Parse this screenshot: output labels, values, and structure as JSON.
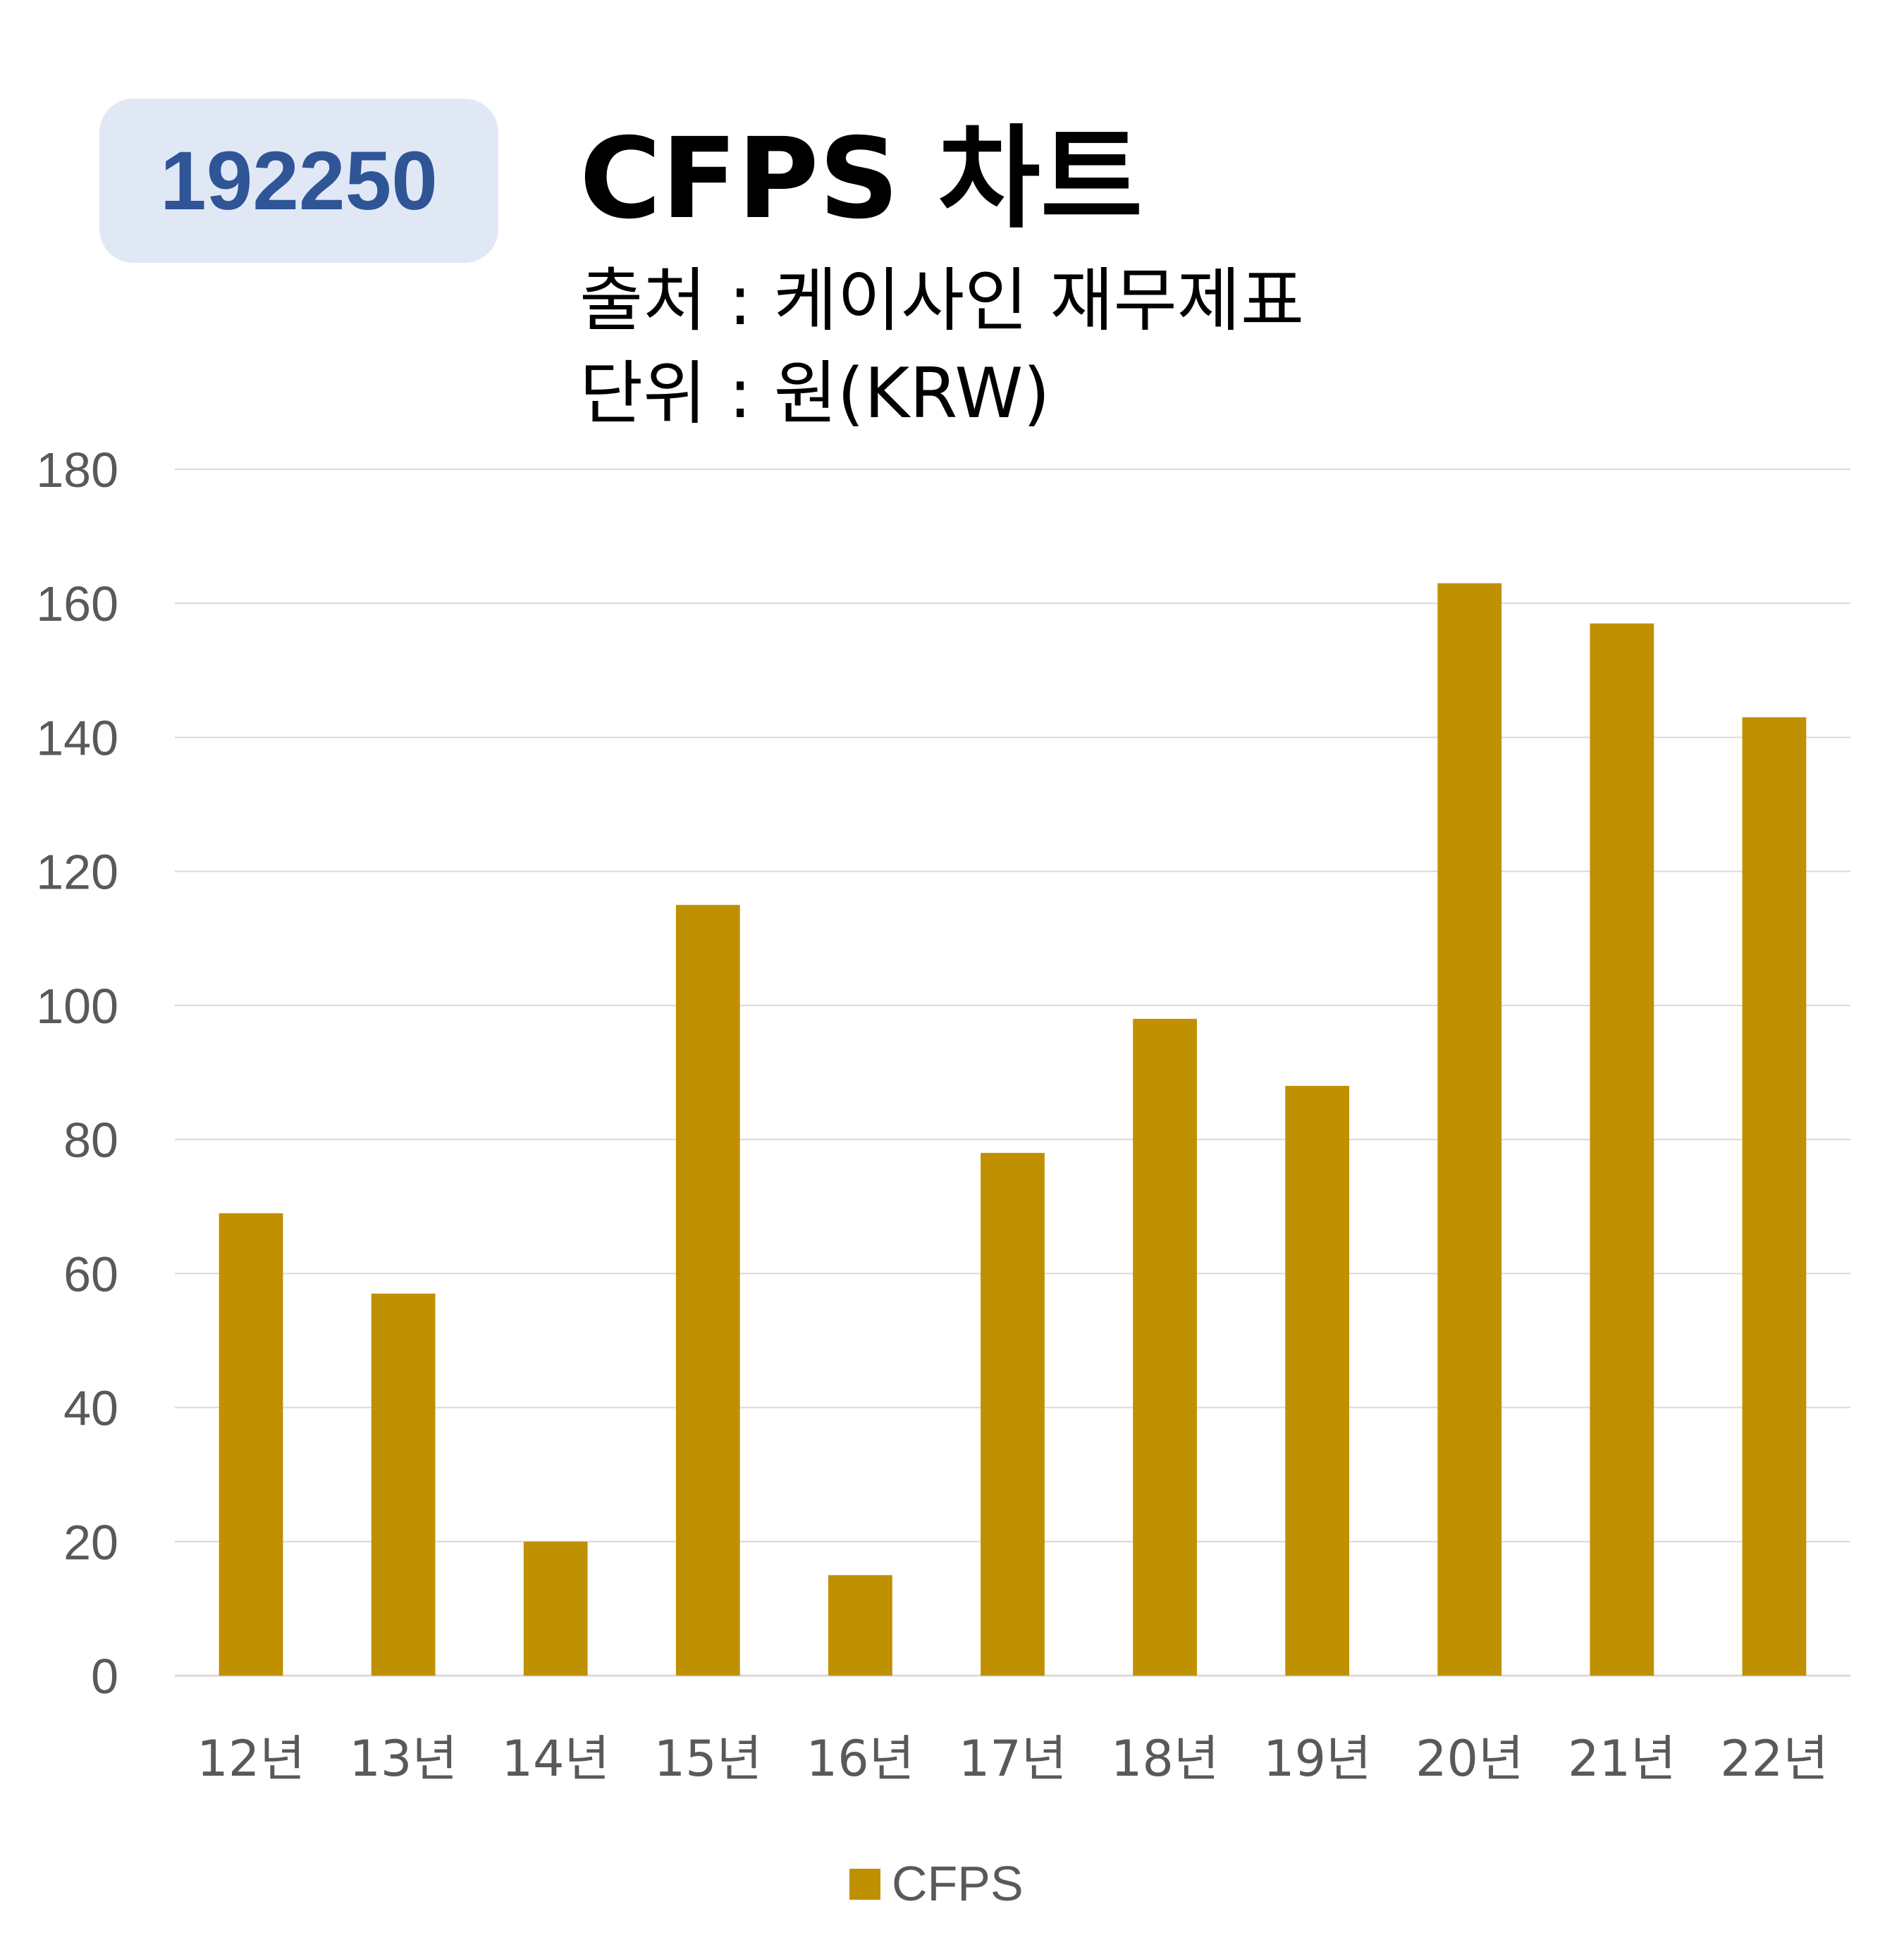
{
  "badge": {
    "code": "192250"
  },
  "header": {
    "title": "CFPS 차트",
    "source": "출처 : 케이사인 재무제표",
    "unit": "단위 : 원(KRW)"
  },
  "colors": {
    "bar": "#bf9000",
    "badge_bg": "#e1e8f5",
    "badge_text": "#2f5597",
    "grid": "#d9d9d9"
  },
  "chart_data": {
    "type": "bar",
    "categories": [
      "12년",
      "13년",
      "14년",
      "15년",
      "16년",
      "17년",
      "18년",
      "19년",
      "20년",
      "21년",
      "22년"
    ],
    "series": [
      {
        "name": "CFPS",
        "values": [
          69,
          57,
          20,
          115,
          15,
          78,
          98,
          88,
          163,
          157,
          143
        ]
      }
    ],
    "ylim": [
      0,
      180
    ],
    "yticks": [
      0,
      20,
      40,
      60,
      80,
      100,
      120,
      140,
      160,
      180
    ],
    "grid": true,
    "legend": "bottom"
  }
}
